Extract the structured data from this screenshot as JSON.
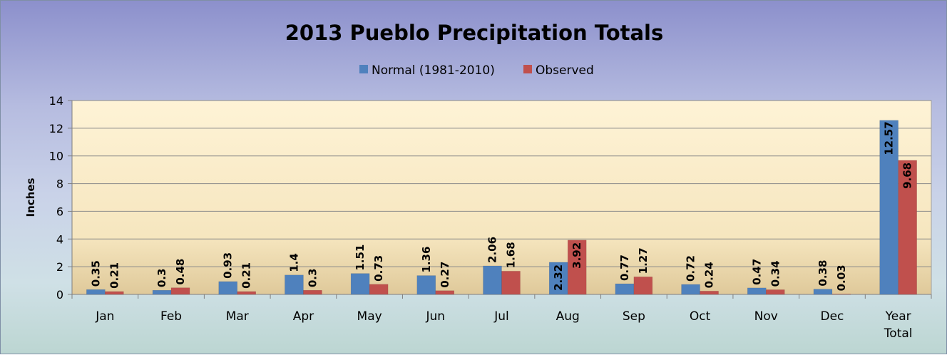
{
  "chart_data": {
    "type": "bar",
    "title": "2013 Pueblo Precipitation Totals",
    "ylabel": "Inches",
    "xlabel": "",
    "ylim": [
      0,
      14
    ],
    "yticks": [
      0,
      2,
      4,
      6,
      8,
      10,
      12,
      14
    ],
    "grid": true,
    "legend_position": "top",
    "categories": [
      [
        "Jan"
      ],
      [
        "Feb"
      ],
      [
        "Mar"
      ],
      [
        "Apr"
      ],
      [
        "May"
      ],
      [
        "Jun"
      ],
      [
        "Jul"
      ],
      [
        "Aug"
      ],
      [
        "Sep"
      ],
      [
        "Oct"
      ],
      [
        "Nov"
      ],
      [
        "Dec"
      ],
      [
        "Year",
        "Total"
      ]
    ],
    "series": [
      {
        "name": "Normal (1981-2010)",
        "color": "#4f81bd",
        "values": [
          0.35,
          0.3,
          0.93,
          1.4,
          1.51,
          1.36,
          2.06,
          2.32,
          0.77,
          0.72,
          0.47,
          0.38,
          12.57
        ],
        "labels": [
          "0.35",
          "0.3",
          "0.93",
          "1.4",
          "1.51",
          "1.36",
          "2.06",
          "2.32",
          "0.77",
          "0.72",
          "0.47",
          "0.38",
          "12.57"
        ]
      },
      {
        "name": "Observed",
        "color": "#c0504d",
        "values": [
          0.21,
          0.48,
          0.21,
          0.3,
          0.73,
          0.27,
          1.68,
          3.92,
          1.27,
          0.24,
          0.34,
          0.03,
          9.68
        ],
        "labels": [
          "0.21",
          "0.48",
          "0.21",
          "0.3",
          "0.73",
          "0.27",
          "1.68",
          "3.92",
          "1.27",
          "0.24",
          "0.34",
          "0.03",
          "9.68"
        ]
      }
    ]
  }
}
